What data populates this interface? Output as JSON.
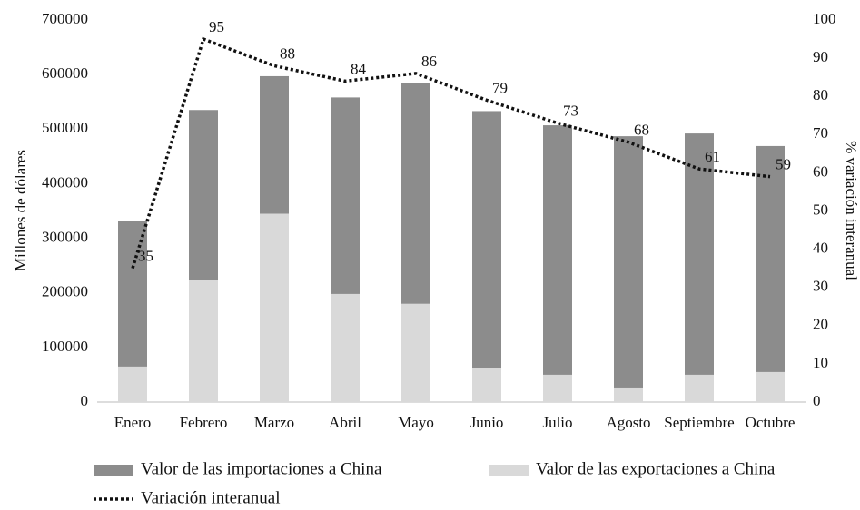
{
  "chart_data": {
    "type": "bar",
    "categories": [
      "Enero",
      "Febrero",
      "Marzo",
      "Abril",
      "Mayo",
      "Junio",
      "Julio",
      "Agosto",
      "Septiembre",
      "Octubre"
    ],
    "series": [
      {
        "name": "Valor de las importaciones a China",
        "color": "#8c8c8c",
        "type": "bar",
        "values": [
          267000,
          312000,
          252000,
          360000,
          405000,
          471000,
          457000,
          462000,
          442000,
          414000
        ]
      },
      {
        "name": "Valor de las exportaciones a China",
        "color": "#d9d9d9",
        "type": "bar",
        "values": [
          65000,
          223000,
          345000,
          198000,
          180000,
          62000,
          50000,
          25000,
          50000,
          55000
        ]
      },
      {
        "name": "Variación interanual",
        "color": "#111111",
        "type": "line",
        "axis": "y2",
        "values": [
          35,
          95,
          88,
          84,
          86,
          79,
          73,
          68,
          61,
          59
        ]
      }
    ],
    "ylabel": "Millones de dólares",
    "y2label": "% variación interanual",
    "ylim": [
      0,
      700000
    ],
    "yticks": [
      0,
      100000,
      200000,
      300000,
      400000,
      500000,
      600000,
      700000
    ],
    "y2lim": [
      0,
      100
    ],
    "y2ticks": [
      0,
      10,
      20,
      30,
      40,
      50,
      60,
      70,
      80,
      90,
      100
    ],
    "stacked": true,
    "grid": false
  }
}
